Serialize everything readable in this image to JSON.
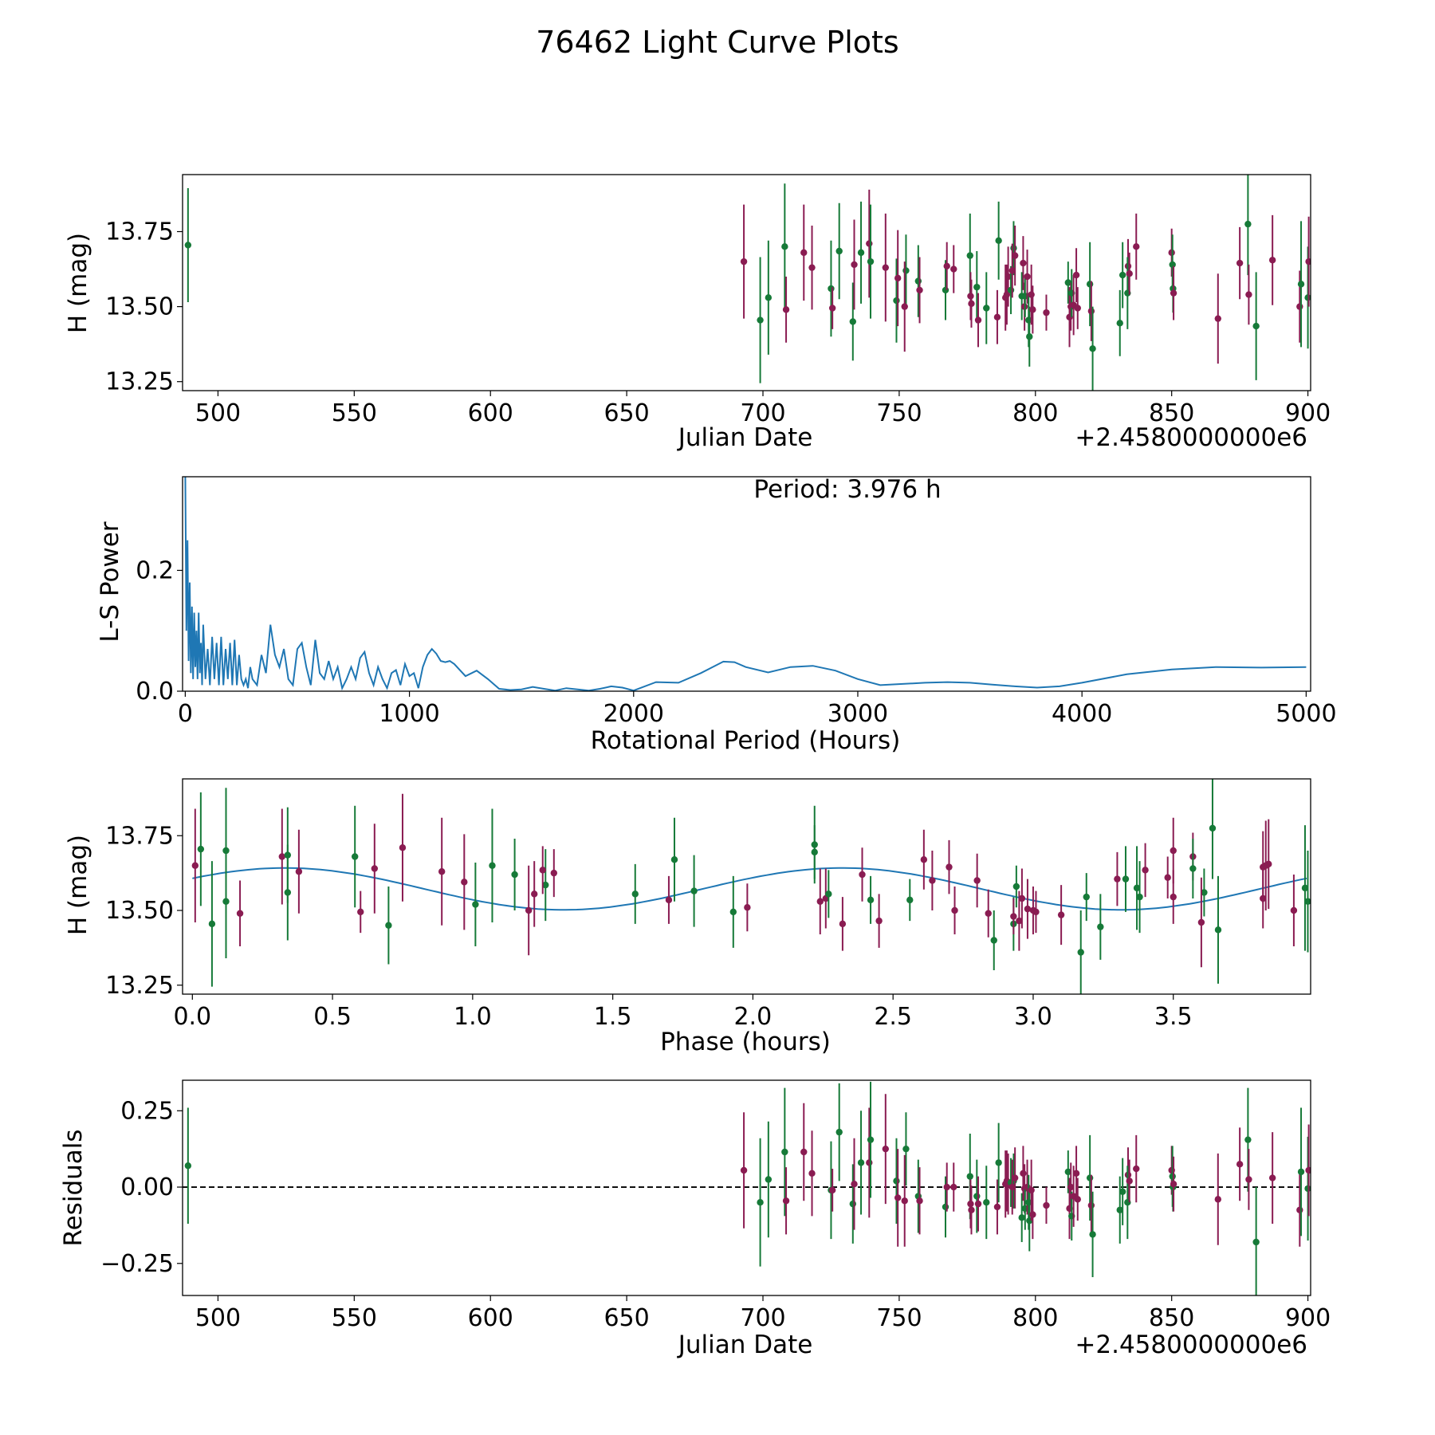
{
  "title": "76462 Light Curve Plots",
  "colors": {
    "green": "#167a38",
    "purple": "#8a1c52",
    "line": "#1f77b4"
  },
  "chart_data": [
    {
      "type": "scatter",
      "name": "light-curve",
      "xlabel": "Julian Date",
      "ylabel": "H (mag)",
      "offset_text": "+2.4580000000e6",
      "xlim": [
        487,
        901
      ],
      "ylim": [
        13.22,
        13.94
      ],
      "xticks": [
        500,
        550,
        600,
        650,
        700,
        750,
        800,
        850,
        900
      ],
      "xtick_labels": [
        "500",
        "550",
        "600",
        "650",
        "700",
        "750",
        "800",
        "850",
        "900"
      ],
      "yticks": [
        13.25,
        13.5,
        13.75
      ],
      "ytick_labels": [
        "13.25",
        "13.50",
        "13.75"
      ],
      "error_bars": true
    },
    {
      "type": "line",
      "name": "periodogram",
      "xlabel": "Rotational Period (Hours)",
      "ylabel": "L-S Power",
      "annotation": "Period: 3.976 h",
      "xlim": [
        -12,
        5020
      ],
      "ylim": [
        0,
        0.355
      ],
      "xticks": [
        0,
        1000,
        2000,
        3000,
        4000,
        5000
      ],
      "xtick_labels": [
        "0",
        "1000",
        "2000",
        "3000",
        "4000",
        "5000"
      ],
      "yticks": [
        0.0,
        0.2
      ],
      "ytick_labels": [
        "0.0",
        "0.2"
      ],
      "x": [
        0,
        5,
        10,
        15,
        20,
        25,
        30,
        35,
        40,
        45,
        50,
        55,
        60,
        65,
        70,
        75,
        80,
        90,
        100,
        110,
        120,
        130,
        140,
        150,
        160,
        170,
        180,
        190,
        200,
        210,
        220,
        230,
        240,
        250,
        260,
        270,
        280,
        290,
        300,
        320,
        340,
        360,
        380,
        400,
        420,
        440,
        460,
        480,
        500,
        520,
        540,
        560,
        580,
        600,
        620,
        640,
        660,
        680,
        700,
        720,
        740,
        760,
        780,
        800,
        820,
        840,
        860,
        880,
        900,
        920,
        940,
        960,
        980,
        1000,
        1020,
        1040,
        1060,
        1080,
        1100,
        1120,
        1140,
        1160,
        1180,
        1200,
        1250,
        1300,
        1350,
        1400,
        1450,
        1500,
        1550,
        1600,
        1650,
        1700,
        1750,
        1800,
        1850,
        1900,
        1950,
        2000,
        2100,
        2200,
        2300,
        2400,
        2450,
        2500,
        2600,
        2700,
        2800,
        2900,
        3000,
        3100,
        3200,
        3300,
        3400,
        3500,
        3600,
        3700,
        3800,
        3900,
        4000,
        4200,
        4400,
        4600,
        4800,
        5000
      ],
      "y": [
        0.36,
        0.1,
        0.25,
        0.05,
        0.18,
        0.03,
        0.14,
        0.02,
        0.13,
        0.04,
        0.1,
        0.02,
        0.13,
        0.03,
        0.08,
        0.01,
        0.11,
        0.02,
        0.07,
        0.01,
        0.09,
        0.02,
        0.08,
        0.01,
        0.09,
        0.01,
        0.07,
        0.02,
        0.08,
        0.01,
        0.085,
        0.01,
        0.06,
        0.02,
        0.01,
        0.02,
        0.005,
        0.04,
        0.02,
        0.01,
        0.06,
        0.03,
        0.11,
        0.06,
        0.04,
        0.07,
        0.02,
        0.01,
        0.07,
        0.08,
        0.04,
        0.01,
        0.085,
        0.03,
        0.02,
        0.05,
        0.02,
        0.04,
        0.005,
        0.02,
        0.04,
        0.02,
        0.055,
        0.065,
        0.03,
        0.01,
        0.04,
        0.02,
        0.005,
        0.03,
        0.035,
        0.01,
        0.045,
        0.025,
        0.03,
        0.005,
        0.04,
        0.06,
        0.07,
        0.062,
        0.05,
        0.048,
        0.05,
        0.045,
        0.025,
        0.034,
        0.02,
        0.004,
        0.002,
        0.003,
        0.007,
        0.004,
        0.001,
        0.005,
        0.003,
        0.001,
        0.004,
        0.008,
        0.006,
        0.001,
        0.015,
        0.014,
        0.03,
        0.049,
        0.048,
        0.04,
        0.031,
        0.04,
        0.042,
        0.034,
        0.02,
        0.01,
        0.012,
        0.014,
        0.015,
        0.014,
        0.011,
        0.008,
        0.006,
        0.008,
        0.014,
        0.028,
        0.036,
        0.04,
        0.039,
        0.04
      ]
    },
    {
      "type": "scatter",
      "name": "phase-folded",
      "xlabel": "Phase (hours)",
      "ylabel": "H (mag)",
      "xlim": [
        -0.035,
        3.99
      ],
      "ylim": [
        13.22,
        13.94
      ],
      "xticks": [
        0,
        0.5,
        1.0,
        1.5,
        2.0,
        2.5,
        3.0,
        3.5
      ],
      "xtick_labels": [
        "0.0",
        "0.5",
        "1.0",
        "1.5",
        "2.0",
        "2.5",
        "3.0",
        "3.5"
      ],
      "yticks": [
        13.25,
        13.5,
        13.75
      ],
      "ytick_labels": [
        "13.25",
        "13.50",
        "13.75"
      ],
      "error_bars": true,
      "model": {
        "mean": 13.572,
        "amplitude": 0.07,
        "period": 1.988,
        "phase_shift": 0.33
      }
    },
    {
      "type": "scatter",
      "name": "residuals",
      "xlabel": "Julian Date",
      "ylabel": "Residuals",
      "offset_text": "+2.4580000000e6",
      "xlim": [
        487,
        901
      ],
      "ylim": [
        -0.355,
        0.35
      ],
      "xticks": [
        500,
        550,
        600,
        650,
        700,
        750,
        800,
        850,
        900
      ],
      "xtick_labels": [
        "500",
        "550",
        "600",
        "650",
        "700",
        "750",
        "800",
        "850",
        "900"
      ],
      "yticks": [
        -0.25,
        0.0,
        0.25
      ],
      "ytick_labels": [
        "−0.25",
        "0.00",
        "0.25"
      ],
      "reference_line": 0.0,
      "error_bars": true
    }
  ],
  "observations": [
    {
      "jd": 489.0,
      "phase": 0.03,
      "h": 13.705,
      "err": 0.19,
      "res": 0.07,
      "band": "g"
    },
    {
      "jd": 693.0,
      "phase": 0.01,
      "h": 13.65,
      "err": 0.19,
      "res": 0.055,
      "band": "p"
    },
    {
      "jd": 699.0,
      "phase": 0.07,
      "h": 13.455,
      "err": 0.21,
      "res": -0.05,
      "band": "g"
    },
    {
      "jd": 702.0,
      "phase": 0.12,
      "h": 13.53,
      "err": 0.19,
      "res": 0.025,
      "band": "g"
    },
    {
      "jd": 708.0,
      "phase": 0.12,
      "h": 13.7,
      "err": 0.21,
      "res": 0.115,
      "band": "g"
    },
    {
      "jd": 708.5,
      "phase": 0.17,
      "h": 13.49,
      "err": 0.11,
      "res": -0.045,
      "band": "p"
    },
    {
      "jd": 715.0,
      "phase": 0.32,
      "h": 13.68,
      "err": 0.16,
      "res": 0.115,
      "band": "p"
    },
    {
      "jd": 718.0,
      "phase": 0.38,
      "h": 13.63,
      "err": 0.14,
      "res": 0.045,
      "band": "p"
    },
    {
      "jd": 725.0,
      "phase": 0.34,
      "h": 13.56,
      "err": 0.16,
      "res": -0.01,
      "band": "g"
    },
    {
      "jd": 725.5,
      "phase": 0.6,
      "h": 13.495,
      "err": 0.07,
      "res": -0.01,
      "band": "p"
    },
    {
      "jd": 728.0,
      "phase": 0.34,
      "h": 13.685,
      "err": 0.16,
      "res": 0.18,
      "band": "g"
    },
    {
      "jd": 733.0,
      "phase": 0.7,
      "h": 13.45,
      "err": 0.13,
      "res": -0.055,
      "band": "g"
    },
    {
      "jd": 733.5,
      "phase": 0.65,
      "h": 13.64,
      "err": 0.15,
      "res": 0.01,
      "band": "p"
    },
    {
      "jd": 736.0,
      "phase": 0.58,
      "h": 13.68,
      "err": 0.17,
      "res": 0.08,
      "band": "g"
    },
    {
      "jd": 739.0,
      "phase": 0.75,
      "h": 13.71,
      "err": 0.18,
      "res": 0.08,
      "band": "p"
    },
    {
      "jd": 739.5,
      "phase": 1.07,
      "h": 13.65,
      "err": 0.19,
      "res": 0.155,
      "band": "g"
    },
    {
      "jd": 745.0,
      "phase": 0.89,
      "h": 13.63,
      "err": 0.18,
      "res": 0.125,
      "band": "p"
    },
    {
      "jd": 749.0,
      "phase": 1.01,
      "h": 13.52,
      "err": 0.14,
      "res": 0.02,
      "band": "g"
    },
    {
      "jd": 749.5,
      "phase": 0.97,
      "h": 13.595,
      "err": 0.16,
      "res": -0.035,
      "band": "p"
    },
    {
      "jd": 752.5,
      "phase": 1.15,
      "h": 13.62,
      "err": 0.12,
      "res": 0.125,
      "band": "g"
    },
    {
      "jd": 752.0,
      "phase": 1.2,
      "h": 13.5,
      "err": 0.15,
      "res": -0.045,
      "band": "p"
    },
    {
      "jd": 757.0,
      "phase": 1.26,
      "h": 13.585,
      "err": 0.12,
      "res": -0.03,
      "band": "g"
    },
    {
      "jd": 757.5,
      "phase": 1.22,
      "h": 13.555,
      "err": 0.11,
      "res": -0.045,
      "band": "p"
    },
    {
      "jd": 767.0,
      "phase": 1.58,
      "h": 13.555,
      "err": 0.1,
      "res": -0.065,
      "band": "g"
    },
    {
      "jd": 767.5,
      "phase": 1.25,
      "h": 13.635,
      "err": 0.08,
      "res": 0.0,
      "band": "p"
    },
    {
      "jd": 770.0,
      "phase": 1.29,
      "h": 13.625,
      "err": 0.08,
      "res": 0.0,
      "band": "p"
    },
    {
      "jd": 776.0,
      "phase": 1.72,
      "h": 13.67,
      "err": 0.14,
      "res": 0.035,
      "band": "g"
    },
    {
      "jd": 776.5,
      "phase": 1.98,
      "h": 13.51,
      "err": 0.08,
      "res": -0.075,
      "band": "p"
    },
    {
      "jd": 776.2,
      "phase": 1.7,
      "h": 13.535,
      "err": 0.08,
      "res": -0.055,
      "band": "p"
    },
    {
      "jd": 778.5,
      "phase": 1.79,
      "h": 13.565,
      "err": 0.12,
      "res": -0.03,
      "band": "g"
    },
    {
      "jd": 779.0,
      "phase": 2.32,
      "h": 13.455,
      "err": 0.09,
      "res": -0.055,
      "band": "p"
    },
    {
      "jd": 782.0,
      "phase": 1.93,
      "h": 13.495,
      "err": 0.12,
      "res": -0.05,
      "band": "g"
    },
    {
      "jd": 786.0,
      "phase": 2.45,
      "h": 13.465,
      "err": 0.09,
      "res": -0.065,
      "band": "p"
    },
    {
      "jd": 786.5,
      "phase": 2.22,
      "h": 13.72,
      "err": 0.13,
      "res": 0.08,
      "band": "g"
    },
    {
      "jd": 789.0,
      "phase": 2.24,
      "h": 13.53,
      "err": 0.11,
      "res": 0.01,
      "band": "p"
    },
    {
      "jd": 789.5,
      "phase": 2.26,
      "h": 13.54,
      "err": 0.1,
      "res": 0.02,
      "band": "p"
    },
    {
      "jd": 790.0,
      "phase": 2.64,
      "h": 13.6,
      "err": 0.1,
      "res": 0.01,
      "band": "p"
    },
    {
      "jd": 791.0,
      "phase": 2.27,
      "h": 13.555,
      "err": 0.08,
      "res": 0.015,
      "band": "g"
    },
    {
      "jd": 792.0,
      "phase": 2.22,
      "h": 13.695,
      "err": 0.09,
      "res": 0.02,
      "band": "g"
    },
    {
      "jd": 792.5,
      "phase": 2.61,
      "h": 13.67,
      "err": 0.1,
      "res": 0.03,
      "band": "p"
    },
    {
      "jd": 791.5,
      "phase": 2.39,
      "h": 13.62,
      "err": 0.09,
      "res": 0.0,
      "band": "p"
    },
    {
      "jd": 795.0,
      "phase": 2.42,
      "h": 13.535,
      "err": 0.08,
      "res": -0.1,
      "band": "g"
    },
    {
      "jd": 795.5,
      "phase": 2.7,
      "h": 13.645,
      "err": 0.09,
      "res": 0.045,
      "band": "p"
    },
    {
      "jd": 796.0,
      "phase": 2.72,
      "h": 13.5,
      "err": 0.08,
      "res": -0.005,
      "band": "p"
    },
    {
      "jd": 796.2,
      "phase": 2.56,
      "h": 13.535,
      "err": 0.07,
      "res": -0.07,
      "band": "g"
    },
    {
      "jd": 797.0,
      "phase": 2.8,
      "h": 13.6,
      "err": 0.09,
      "res": 0.0,
      "band": "p"
    },
    {
      "jd": 797.5,
      "phase": 2.93,
      "h": 13.455,
      "err": 0.09,
      "res": -0.05,
      "band": "g"
    },
    {
      "jd": 797.8,
      "phase": 2.86,
      "h": 13.4,
      "err": 0.1,
      "res": -0.11,
      "band": "g"
    },
    {
      "jd": 798.5,
      "phase": 2.96,
      "h": 13.54,
      "err": 0.1,
      "res": -0.01,
      "band": "p"
    },
    {
      "jd": 799.0,
      "phase": 2.84,
      "h": 13.49,
      "err": 0.08,
      "res": -0.09,
      "band": "p"
    },
    {
      "jd": 804.0,
      "phase": 2.93,
      "h": 13.48,
      "err": 0.06,
      "res": -0.06,
      "band": "p"
    },
    {
      "jd": 812.0,
      "phase": 2.94,
      "h": 13.58,
      "err": 0.07,
      "res": 0.05,
      "band": "g"
    },
    {
      "jd": 812.5,
      "phase": 2.95,
      "h": 13.465,
      "err": 0.1,
      "res": -0.07,
      "band": "p"
    },
    {
      "jd": 813.0,
      "phase": 3.0,
      "h": 13.5,
      "err": 0.08,
      "res": 0.0,
      "band": "p"
    },
    {
      "jd": 813.3,
      "phase": 3.19,
      "h": 13.545,
      "err": 0.08,
      "res": -0.095,
      "band": "g"
    },
    {
      "jd": 814.0,
      "phase": 2.98,
      "h": 13.505,
      "err": 0.1,
      "res": -0.03,
      "band": "p"
    },
    {
      "jd": 815.0,
      "phase": 3.3,
      "h": 13.605,
      "err": 0.09,
      "res": 0.045,
      "band": "p"
    },
    {
      "jd": 815.5,
      "phase": 3.01,
      "h": 13.495,
      "err": 0.07,
      "res": -0.04,
      "band": "p"
    },
    {
      "jd": 820.0,
      "phase": 3.37,
      "h": 13.575,
      "err": 0.14,
      "res": 0.03,
      "band": "g"
    },
    {
      "jd": 820.5,
      "phase": 3.1,
      "h": 13.485,
      "err": 0.1,
      "res": -0.06,
      "band": "p"
    },
    {
      "jd": 821.0,
      "phase": 3.17,
      "h": 13.36,
      "err": 0.14,
      "res": -0.155,
      "band": "g"
    },
    {
      "jd": 831.0,
      "phase": 3.24,
      "h": 13.445,
      "err": 0.11,
      "res": -0.075,
      "band": "g"
    },
    {
      "jd": 832.0,
      "phase": 3.33,
      "h": 13.605,
      "err": 0.11,
      "res": -0.015,
      "band": "g"
    },
    {
      "jd": 834.0,
      "phase": 3.4,
      "h": 13.635,
      "err": 0.09,
      "res": 0.04,
      "band": "p"
    },
    {
      "jd": 833.8,
      "phase": 3.38,
      "h": 13.545,
      "err": 0.12,
      "res": -0.05,
      "band": "g"
    },
    {
      "jd": 834.5,
      "phase": 3.48,
      "h": 13.61,
      "err": 0.07,
      "res": 0.02,
      "band": "p"
    },
    {
      "jd": 837.0,
      "phase": 3.5,
      "h": 13.7,
      "err": 0.11,
      "res": 0.06,
      "band": "p"
    },
    {
      "jd": 850.0,
      "phase": 3.57,
      "h": 13.68,
      "err": 0.08,
      "res": 0.055,
      "band": "p"
    },
    {
      "jd": 850.3,
      "phase": 3.57,
      "h": 13.64,
      "err": 0.1,
      "res": 0.035,
      "band": "g"
    },
    {
      "jd": 850.5,
      "phase": 3.61,
      "h": 13.56,
      "err": 0.08,
      "res": 0.0,
      "band": "g"
    },
    {
      "jd": 850.7,
      "phase": 3.5,
      "h": 13.545,
      "err": 0.09,
      "res": 0.01,
      "band": "p"
    },
    {
      "jd": 867.0,
      "phase": 3.6,
      "h": 13.46,
      "err": 0.15,
      "res": -0.04,
      "band": "p"
    },
    {
      "jd": 875.0,
      "phase": 3.82,
      "h": 13.645,
      "err": 0.12,
      "res": 0.075,
      "band": "p"
    },
    {
      "jd": 878.0,
      "phase": 3.64,
      "h": 13.775,
      "err": 0.17,
      "res": 0.155,
      "band": "g"
    },
    {
      "jd": 878.3,
      "phase": 3.82,
      "h": 13.54,
      "err": 0.1,
      "res": 0.025,
      "band": "p"
    },
    {
      "jd": 881.0,
      "phase": 3.66,
      "h": 13.435,
      "err": 0.18,
      "res": -0.18,
      "band": "g"
    },
    {
      "jd": 887.0,
      "phase": 3.84,
      "h": 13.655,
      "err": 0.15,
      "res": 0.03,
      "band": "p"
    },
    {
      "jd": 897.0,
      "phase": 3.93,
      "h": 13.5,
      "err": 0.12,
      "res": -0.075,
      "band": "p"
    },
    {
      "jd": 897.5,
      "phase": 3.97,
      "h": 13.575,
      "err": 0.21,
      "res": 0.05,
      "band": "g"
    },
    {
      "jd": 900.0,
      "phase": 3.98,
      "h": 13.53,
      "err": 0.17,
      "res": -0.005,
      "band": "g"
    },
    {
      "jd": 900.3,
      "phase": 3.83,
      "h": 13.65,
      "err": 0.15,
      "res": 0.055,
      "band": "p"
    }
  ]
}
